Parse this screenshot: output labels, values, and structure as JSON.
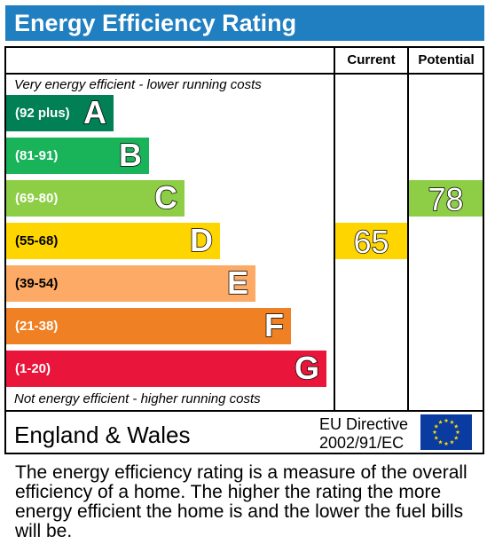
{
  "header": {
    "title": "Energy Efficiency Rating"
  },
  "columns": {
    "current": "Current",
    "potential": "Potential"
  },
  "notes": {
    "top": "Very energy efficient - lower running costs",
    "bottom": "Not energy efficient - higher running costs"
  },
  "colors": {
    "title_bar": "#1f7fc0",
    "A": "#008054",
    "B": "#19b459",
    "C": "#8dce46",
    "D": "#ffd500",
    "E": "#fcaa65",
    "F": "#ef8023",
    "G": "#e9153b"
  },
  "chart_data": {
    "type": "bar",
    "categories": [
      "A",
      "B",
      "C",
      "D",
      "E",
      "F",
      "G"
    ],
    "ranges": [
      "(92 plus)",
      "(81-91)",
      "(69-80)",
      "(55-68)",
      "(39-54)",
      "(21-38)",
      "(1-20)"
    ],
    "current": {
      "value": 65,
      "band": "D"
    },
    "potential": {
      "value": 78,
      "band": "C"
    }
  },
  "footer": {
    "region": "England & Wales",
    "directive_line1": "EU Directive",
    "directive_line2": "2002/91/EC",
    "flag_icon": "eu-flag-icon"
  },
  "description": "The energy efficiency rating is a measure of the overall efficiency of a home. The higher the rating the more energy efficient the home is and the lower the fuel bills will be."
}
